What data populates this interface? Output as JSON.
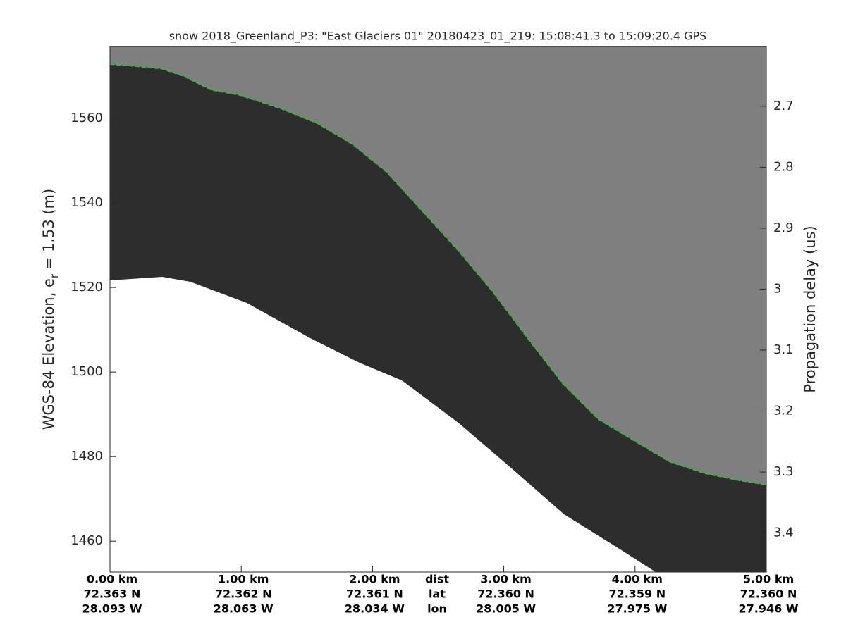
{
  "chart_data": {
    "type": "line",
    "title": "snow 2018_Greenland_P3: \"East Glaciers 01\"  20180423_01_219: 15:08:41.3 to 15:09:20.4 GPS",
    "ylabel": {
      "text": "WGS-84 Elevation, e",
      "subscript": "r",
      "rest": " = 1.53 (m)"
    },
    "y2label": "Propagation delay (us)",
    "xlim": [
      0,
      5
    ],
    "xticks": [
      {
        "value": 0,
        "label": "0.00 km"
      },
      {
        "value": 1,
        "label": "1.00 km"
      },
      {
        "value": 2,
        "label": "2.00 km"
      },
      {
        "value": 3,
        "label": "3.00 km"
      },
      {
        "value": 4,
        "label": "4.00 km"
      },
      {
        "value": 5,
        "label": "5.00 km"
      }
    ],
    "lat_labels": [
      "72.363 N",
      "72.362 N",
      "72.361 N",
      "72.360 N",
      "72.359 N",
      "72.360 N"
    ],
    "lon_labels": [
      "28.093 W",
      "28.063 W",
      "28.034 W",
      "28.005 W",
      "27.975 W",
      "27.946 W"
    ],
    "row_labels": [
      "dist",
      "lat",
      "lon"
    ],
    "ylim": [
      1452.7,
      1577
    ],
    "yticks": [
      1460,
      1480,
      1500,
      1520,
      1540,
      1560
    ],
    "y2lim": [
      3.464,
      2.602
    ],
    "y2ticks": [
      2.7,
      2.8,
      2.9,
      3,
      3.1,
      3.2,
      3.3,
      3.4
    ],
    "x": [
      0,
      0.236,
      0.397,
      0.558,
      0.773,
      0.988,
      1.31,
      1.58,
      1.85,
      2.11,
      2.38,
      2.65,
      2.92,
      3.18,
      3.45,
      3.72,
      3.99,
      4.26,
      4.53,
      4.8,
      5
    ],
    "series": [
      {
        "color": "#22cc22",
        "values": [
          1572.8,
          1572.2,
          1571.7,
          1570.0,
          1566.7,
          1565.5,
          1562.2,
          1558.8,
          1553.8,
          1547.2,
          1538.0,
          1528.8,
          1518.8,
          1508.0,
          1497.2,
          1488.8,
          1483.8,
          1478.8,
          1476.0,
          1474.3,
          1473.3
        ]
      }
    ]
  }
}
